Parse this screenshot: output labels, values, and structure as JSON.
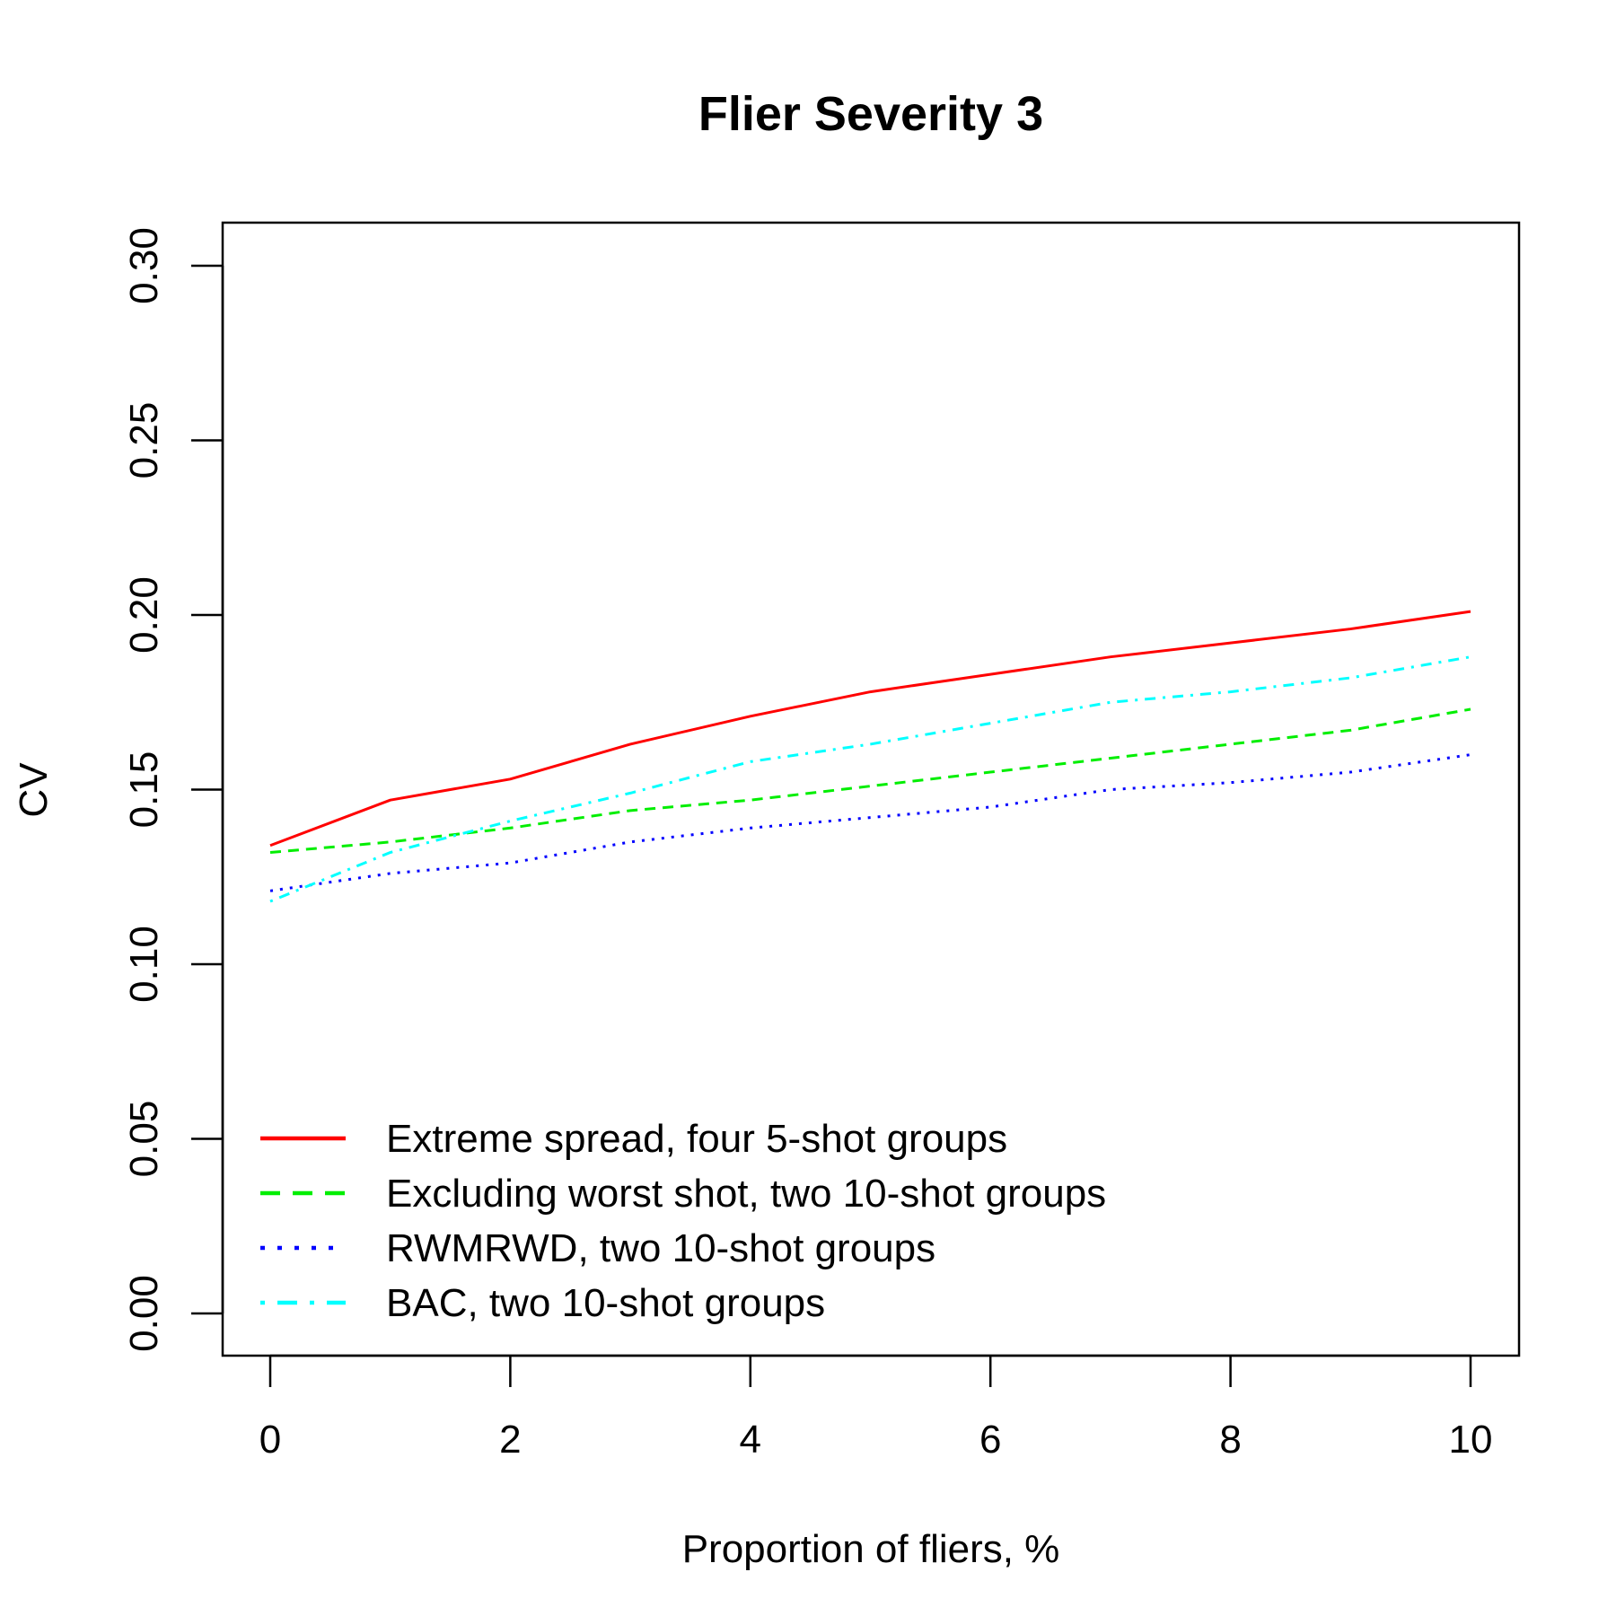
{
  "chart_data": {
    "type": "line",
    "title": "Flier Severity 3",
    "xlabel": "Proportion of fliers, %",
    "ylabel": "CV",
    "xlim": [
      0,
      10
    ],
    "ylim": [
      0.0,
      0.3
    ],
    "x_ticks": [
      0,
      2,
      4,
      6,
      8,
      10
    ],
    "y_ticks": [
      0.0,
      0.05,
      0.1,
      0.15,
      0.2,
      0.25,
      0.3
    ],
    "grid": false,
    "legend_position": "bottom-left",
    "x": [
      0,
      1,
      2,
      3,
      4,
      5,
      6,
      7,
      8,
      9,
      10
    ],
    "series": [
      {
        "name": "Extreme spread, four 5-shot groups",
        "color": "#ff0000",
        "dash": "solid",
        "values": [
          0.134,
          0.147,
          0.153,
          0.163,
          0.171,
          0.178,
          0.183,
          0.188,
          0.192,
          0.196,
          0.201
        ]
      },
      {
        "name": "Excluding worst shot, two 10-shot groups",
        "color": "#00ee00",
        "dash": "dashed",
        "values": [
          0.132,
          0.135,
          0.139,
          0.144,
          0.147,
          0.151,
          0.155,
          0.159,
          0.163,
          0.167,
          0.173
        ]
      },
      {
        "name": "RWMRWD, two 10-shot groups",
        "color": "#0000ff",
        "dash": "dotted",
        "values": [
          0.121,
          0.126,
          0.129,
          0.135,
          0.139,
          0.142,
          0.145,
          0.15,
          0.152,
          0.155,
          0.16
        ]
      },
      {
        "name": "BAC, two 10-shot groups",
        "color": "#00ffff",
        "dash": "dotdash",
        "values": [
          0.118,
          0.132,
          0.141,
          0.149,
          0.158,
          0.163,
          0.169,
          0.175,
          0.178,
          0.182,
          0.188
        ]
      }
    ]
  }
}
